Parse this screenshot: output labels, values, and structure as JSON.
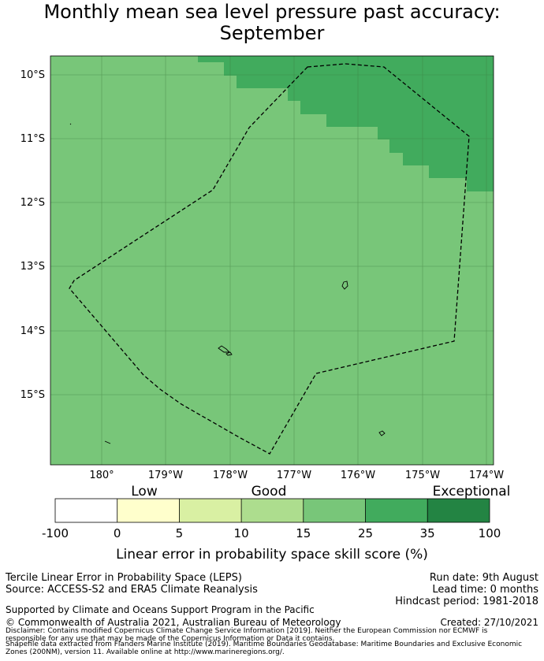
{
  "title": {
    "line1": "Monthly mean sea level pressure past accuracy:",
    "line2": "September"
  },
  "map": {
    "lat_labels": [
      "10°S",
      "11°S",
      "12°S",
      "13°S",
      "14°S",
      "15°S"
    ],
    "lon_labels": [
      "180°",
      "179°W",
      "178°W",
      "177°W",
      "176°W",
      "175°W",
      "174°W"
    ],
    "fill_colors": {
      "base": "#78c679",
      "high": "#41ab5d"
    }
  },
  "colorbar": {
    "categories": [
      "Low",
      "Good",
      "Exceptional"
    ],
    "tick_labels": [
      "-100",
      "0",
      "5",
      "10",
      "15",
      "25",
      "35",
      "100"
    ],
    "colors": [
      "#ffffff",
      "#ffffcc",
      "#d9f0a3",
      "#addd8e",
      "#78c679",
      "#41ab5d",
      "#238443"
    ],
    "label": "Linear error in probability space skill score (%)"
  },
  "footer": {
    "left_line1": "Tercile Linear Error in Probability Space (LEPS)",
    "left_line2": "Source: ACCESS-S2 and ERA5 Climate Reanalysis",
    "right_line1": "Run date: 9th August",
    "right_line2": "Lead time: 0 months",
    "right_line3": "Hindcast period: 1981-2018",
    "support": "Supported by Climate and Oceans Support Program in the Pacific",
    "copyright": "© Commonwealth of Australia 2021, Australian Bureau of Meteorology",
    "created": "Created: 27/10/2021",
    "disclaimer1": "Disclaimer: Contains modified Copernicus Climate Change Service Information [2019]. Neither the European Commission nor ECMWF is",
    "disclaimer2": "responsible for any use that may be made of the Copernicus Information or Data it contains.",
    "shapefile1": "Shapefile data extracted from Flanders Marine Institute (2019). Maritime Boundaries Geodatabase: Maritime Boundaries and Exclusive Economic",
    "shapefile2": "Zones (200NM), version 11. Available online at http://www.marineregions.org/."
  }
}
